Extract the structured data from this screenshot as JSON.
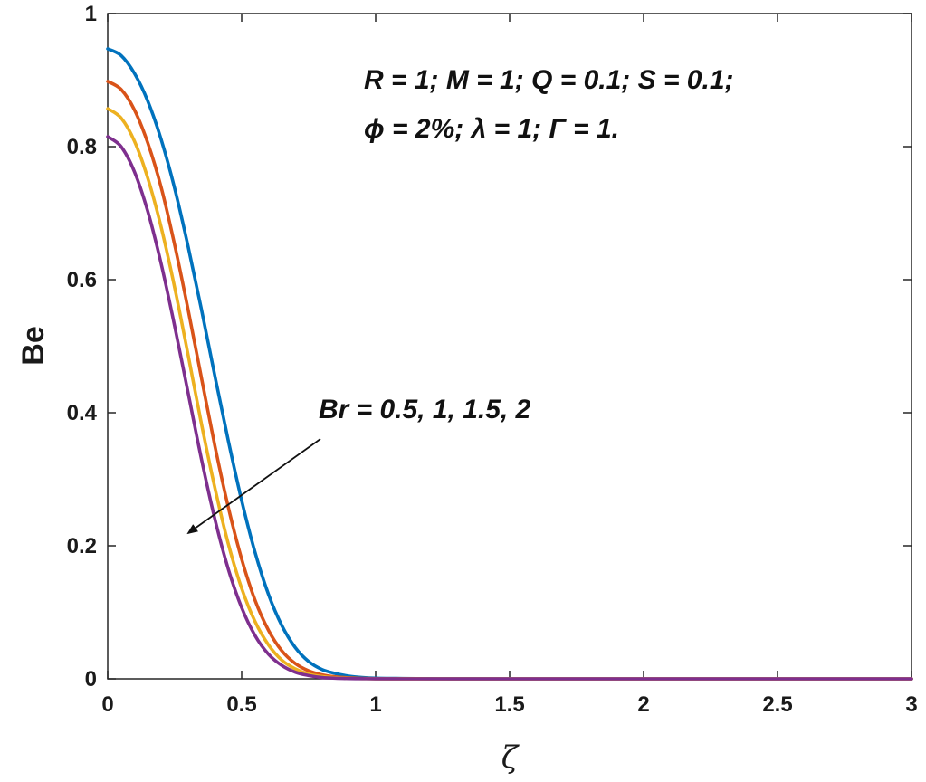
{
  "chart_data": {
    "type": "line",
    "xlabel": "ζ",
    "ylabel": "Be",
    "xlim": [
      0,
      3
    ],
    "ylim": [
      0,
      1
    ],
    "xticks": [
      0,
      0.5,
      1,
      1.5,
      2,
      2.5,
      3
    ],
    "xtick_labels": [
      "0",
      "0.5",
      "1",
      "1.5",
      "2",
      "2.5",
      "3"
    ],
    "yticks": [
      0,
      0.2,
      0.4,
      0.6,
      0.8,
      1
    ],
    "ytick_labels": [
      "0",
      "0.2",
      "0.4",
      "0.6",
      "0.8",
      "1"
    ],
    "grid": false,
    "x": [
      0,
      0.05,
      0.1,
      0.15,
      0.2,
      0.25,
      0.3,
      0.35,
      0.4,
      0.45,
      0.5,
      0.55,
      0.6,
      0.65,
      0.7,
      0.75,
      0.8,
      0.85,
      0.9,
      0.95,
      1.0,
      1.1,
      1.2,
      1.3,
      1.5,
      2.0,
      2.5,
      3.0
    ],
    "series": [
      {
        "color": "#0072BD",
        "values": [
          0.947,
          0.937,
          0.91,
          0.868,
          0.81,
          0.737,
          0.65,
          0.555,
          0.455,
          0.358,
          0.268,
          0.19,
          0.127,
          0.08,
          0.047,
          0.026,
          0.014,
          0.008,
          0.004,
          0.002,
          0.001,
          0.0005,
          0.0002,
          0.0001,
          0,
          0,
          0,
          0
        ]
      },
      {
        "color": "#D95319",
        "values": [
          0.898,
          0.886,
          0.855,
          0.805,
          0.738,
          0.652,
          0.555,
          0.452,
          0.35,
          0.258,
          0.18,
          0.118,
          0.073,
          0.042,
          0.023,
          0.012,
          0.006,
          0.003,
          0.0015,
          0.0007,
          0.0003,
          0.0001,
          0,
          0,
          0,
          0,
          0,
          0
        ]
      },
      {
        "color": "#EDB120",
        "values": [
          0.857,
          0.843,
          0.808,
          0.752,
          0.678,
          0.588,
          0.487,
          0.383,
          0.287,
          0.203,
          0.136,
          0.086,
          0.051,
          0.028,
          0.015,
          0.007,
          0.0035,
          0.0016,
          0.0007,
          0.0003,
          0.0001,
          0,
          0,
          0,
          0,
          0,
          0,
          0
        ]
      },
      {
        "color": "#7E2F8E",
        "values": [
          0.815,
          0.8,
          0.762,
          0.702,
          0.623,
          0.53,
          0.43,
          0.33,
          0.24,
          0.165,
          0.107,
          0.065,
          0.037,
          0.02,
          0.01,
          0.005,
          0.002,
          0.0009,
          0.0004,
          0.0002,
          0.0001,
          0,
          0,
          0,
          0,
          0,
          0,
          0
        ]
      }
    ],
    "annotations": {
      "params_line1": "R = 1; M = 1; Q = 0.1; S = 0.1;",
      "params_line2": "ϕ = 2%; λ = 1; Γ = 1.",
      "arrow_label": "Br = 0.5, 1, 1.5, 2"
    }
  }
}
